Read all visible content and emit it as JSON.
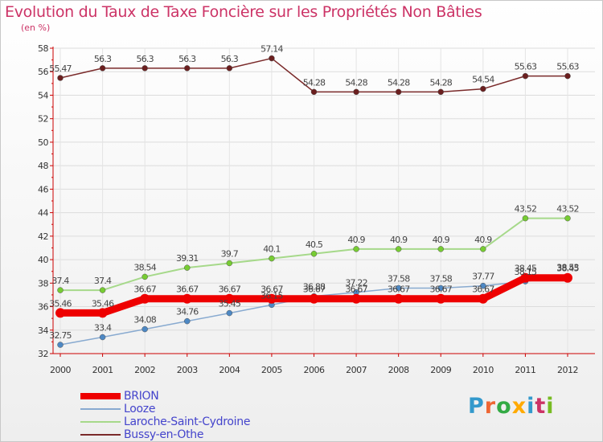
{
  "header": {
    "title": "Evolution du Taux de Taxe Foncière sur les Propriétés Non Bâties",
    "unit": "(en %)"
  },
  "logo": {
    "text": "Proxiti"
  },
  "chart_data": {
    "type": "line",
    "title": "Evolution du Taux de Taxe Foncière sur les Propriétés Non Bâties",
    "ylabel": "(en %)",
    "xlabel": "",
    "x": [
      "2000",
      "2001",
      "2002",
      "2003",
      "2004",
      "2005",
      "2006",
      "2007",
      "2008",
      "2009",
      "2010",
      "2011",
      "2012"
    ],
    "ylim": [
      32,
      58
    ],
    "yticks": [
      32,
      34,
      36,
      38,
      40,
      42,
      44,
      46,
      48,
      50,
      52,
      54,
      56,
      58
    ],
    "grid": true,
    "legend_position": "bottom-left",
    "series": [
      {
        "name": "Bussy-en-Othe",
        "color": "#7a2a2a",
        "width": 1.5,
        "marker": "#6b1f1f",
        "values": [
          55.47,
          56.3,
          56.3,
          56.3,
          56.3,
          57.14,
          54.28,
          54.28,
          54.28,
          54.28,
          54.54,
          55.63,
          55.63
        ],
        "labels": [
          "55.47",
          "56.3",
          "56.3",
          "56.3",
          "56.3",
          "57.14",
          "54.28",
          "54.28",
          "54.28",
          "54.28",
          "54.54",
          "55.63",
          "55.63"
        ]
      },
      {
        "name": "Laroche-Saint-Cydroine",
        "color": "#a6d98a",
        "width": 2,
        "marker": "#77cc33",
        "values": [
          37.4,
          37.4,
          38.54,
          39.31,
          39.7,
          40.1,
          40.5,
          40.9,
          40.9,
          40.9,
          40.9,
          43.52,
          43.52
        ],
        "labels": [
          "37.4",
          "37.4",
          "38.54",
          "39.31",
          "39.7",
          "40.1",
          "40.5",
          "40.9",
          "40.9",
          "40.9",
          "40.9",
          "43.52",
          "43.52"
        ]
      },
      {
        "name": "Looze",
        "color": "#88aad0",
        "width": 1.5,
        "marker": "#4d88c4",
        "values": [
          32.75,
          33.4,
          34.08,
          34.76,
          35.45,
          36.15,
          36.88,
          37.22,
          37.58,
          37.58,
          37.77,
          38.15,
          38.53
        ],
        "labels": [
          "32.75",
          "33.4",
          "34.08",
          "34.76",
          "35.45",
          "36.15",
          "36.88",
          "37.22",
          "37.58",
          "37.58",
          "37.77",
          "38.15",
          "38.53"
        ]
      },
      {
        "name": "BRION",
        "color": "#ee0000",
        "width": 9,
        "marker": "#ee0000",
        "values": [
          35.46,
          35.46,
          36.67,
          36.67,
          36.67,
          36.67,
          36.67,
          36.67,
          36.67,
          36.67,
          36.67,
          38.45,
          38.45
        ],
        "labels": [
          "35.46",
          "35.46",
          "36.67",
          "36.67",
          "36.67",
          "36.67",
          "36.67",
          "36.67",
          "36.67",
          "36.67",
          "36.67",
          "38.45",
          "38.45"
        ]
      }
    ]
  }
}
